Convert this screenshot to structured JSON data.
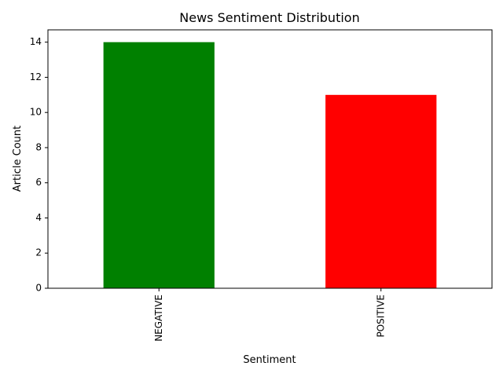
{
  "chart_data": {
    "type": "bar",
    "title": "News Sentiment Distribution",
    "xlabel": "Sentiment",
    "ylabel": "Article Count",
    "categories": [
      "NEGATIVE",
      "POSITIVE"
    ],
    "values": [
      14,
      11
    ],
    "bar_colors": [
      "#008000",
      "#ff0000"
    ],
    "ylim": [
      0,
      14.7
    ],
    "yticks": [
      0,
      2,
      4,
      6,
      8,
      10,
      12,
      14
    ],
    "grid": false,
    "legend": "none"
  }
}
